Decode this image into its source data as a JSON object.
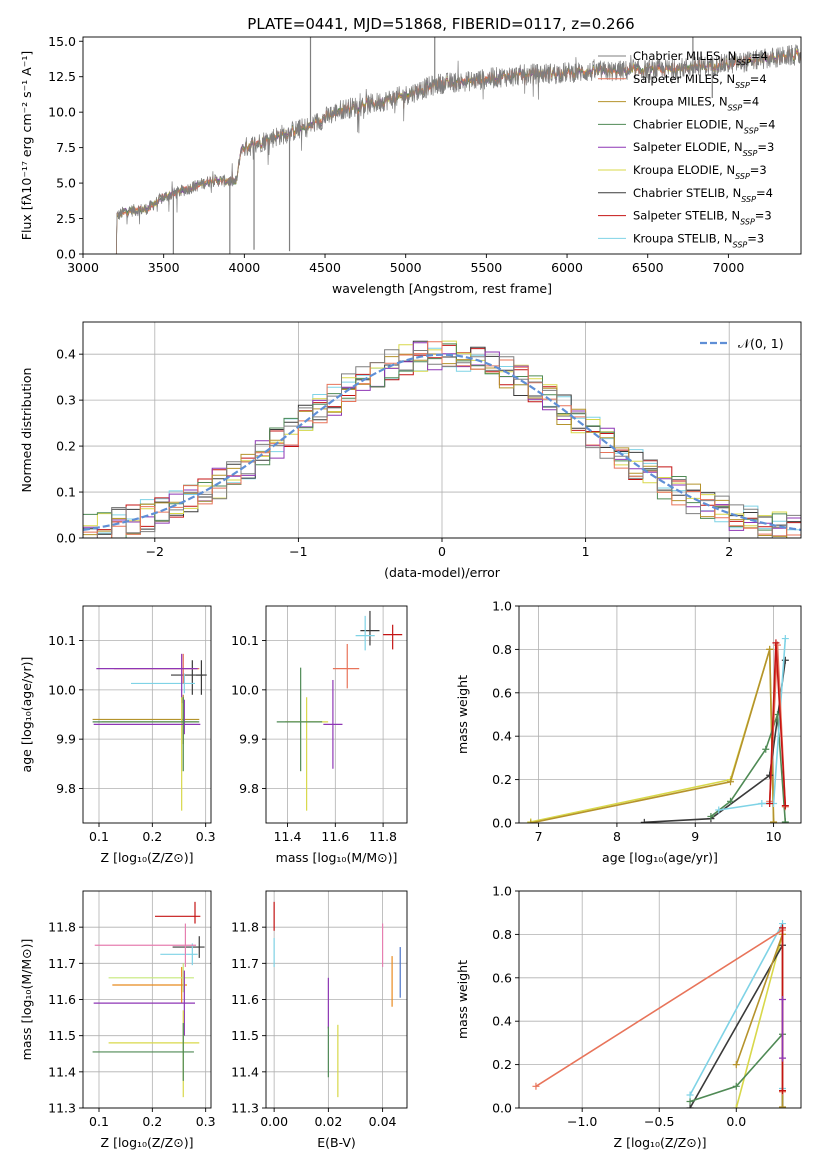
{
  "figure_title": "PLATE=0441, MJD=51868, FIBERID=0117, z=0.266",
  "palette": [
    "#7f7f7f",
    "#e8745a",
    "#b5932c",
    "#4f8a55",
    "#8e36b5",
    "#d8d84a",
    "#3a3a3a",
    "#c41414",
    "#7fd3e6"
  ],
  "extra_colors": {
    "pink": "#e67fb0",
    "orange": "#e88a1d",
    "green_light": "#c5e87a",
    "gauss": "#5f8fd6",
    "blue": "#4a72c8"
  },
  "chart_data": [
    {
      "type": "line",
      "title": "PLATE=0441, MJD=51868, FIBERID=0117, z=0.266",
      "xlabel": "wavelength [Angstrom, rest frame]",
      "ylabel": "Flux [fλ10⁻¹⁷ erg cm⁻² s⁻¹ A⁻¹]",
      "xlim": [
        3000,
        7450
      ],
      "ylim": [
        0,
        15.3
      ],
      "xticks": [
        3000,
        3500,
        4000,
        4500,
        5000,
        5500,
        6000,
        6500,
        7000
      ],
      "yticks": [
        0,
        2.5,
        5,
        7.5,
        10,
        12.5,
        15
      ],
      "ytick_labels": [
        "0.0",
        "2.5",
        "5.0",
        "7.5",
        "10.0",
        "12.5",
        "15.0"
      ],
      "grid": false,
      "legend_position": "upper right",
      "series_names": [
        "Chabrier MILES, N_SSP=4",
        "Salpeter MILES, N_SSP=4",
        "Kroupa MILES, N_SSP=4",
        "Chabrier ELODIE, N_SSP=4",
        "Salpeter ELODIE, N_SSP=3",
        "Kroupa ELODIE, N_SSP=3",
        "Chabrier STELIB, N_SSP=4",
        "Salpeter STELIB, N_SSP=3",
        "Kroupa STELIB, N_SSP=3"
      ],
      "spectrum_start": 3200,
      "continuum_anchors": [
        [
          3200,
          2.6
        ],
        [
          3260,
          3.0
        ],
        [
          3400,
          3.2
        ],
        [
          3500,
          4.0
        ],
        [
          3650,
          4.6
        ],
        [
          3800,
          5.2
        ],
        [
          3950,
          5.1
        ],
        [
          3980,
          7.4
        ],
        [
          4200,
          8.3
        ],
        [
          4400,
          9.0
        ],
        [
          4600,
          10.2
        ],
        [
          4800,
          10.6
        ],
        [
          5000,
          11.2
        ],
        [
          5200,
          12.0
        ],
        [
          5400,
          12.2
        ],
        [
          5600,
          12.5
        ],
        [
          5800,
          12.7
        ],
        [
          6000,
          12.8
        ],
        [
          6300,
          12.9
        ],
        [
          6600,
          13.0
        ],
        [
          7000,
          13.4
        ],
        [
          7400,
          14.0
        ]
      ]
    },
    {
      "type": "area",
      "xlabel": "(data-model)/error",
      "ylabel": "Normed distribution",
      "xlim": [
        -2.5,
        2.5
      ],
      "ylim": [
        0,
        0.47
      ],
      "xticks": [
        -2,
        -1,
        0,
        1,
        2
      ],
      "xtick_labels": [
        "−2",
        "−1",
        "0",
        "1",
        "2"
      ],
      "yticks": [
        0,
        0.1,
        0.2,
        0.3,
        0.4
      ],
      "ytick_labels": [
        "0.0",
        "0.1",
        "0.2",
        "0.3",
        "0.4"
      ],
      "grid": true,
      "legend_position": "upper right",
      "legend_label": "𝒩(0, 1)",
      "bin_width": 0.1,
      "gaussian": {
        "mean": 0,
        "sigma": 1
      }
    },
    {
      "type": "scatter",
      "xlabel": "Z [log₁₀(Z/Z⊙)]",
      "ylabel": "age  [log₁₀(age/yr)]",
      "xlim": [
        0.07,
        0.31
      ],
      "ylim": [
        9.73,
        10.17
      ],
      "xticks": [
        0.1,
        0.2,
        0.3
      ],
      "xtick_labels": [
        "0.1",
        "0.2",
        "0.3"
      ],
      "yticks": [
        9.8,
        9.9,
        10.0,
        10.1
      ],
      "ytick_labels": [
        "9.8",
        "9.9",
        "10.0",
        "10.1"
      ],
      "grid": true,
      "points": [
        {
          "c": 6,
          "x": 0.275,
          "y": 10.03,
          "xerr": [
            0.04,
            0.02
          ],
          "yerr": [
            0.04,
            0.03
          ]
        },
        {
          "c": 8,
          "x": 0.26,
          "y": 10.013,
          "xerr": [
            0.1,
            0.02
          ],
          "yerr": [
            0.02,
            0.02
          ]
        },
        {
          "c": 6,
          "x": 0.292,
          "y": 10.03,
          "xerr": [
            0.01,
            0.01
          ],
          "yerr": [
            0.04,
            0.03
          ]
        },
        {
          "c": 1,
          "x": 0.258,
          "y": 10.043,
          "xerr": [
            0.13,
            0.03
          ],
          "yerr": [
            0.03,
            0.03
          ]
        },
        {
          "c": 4,
          "x": 0.255,
          "y": 10.043,
          "xerr": [
            0.16,
            0.03
          ],
          "yerr": [
            0.07,
            0.03
          ]
        },
        {
          "c": 2,
          "x": 0.258,
          "y": 9.94,
          "xerr": [
            0.17,
            0.03
          ],
          "yerr": [
            0.05,
            0.05
          ]
        },
        {
          "c": 5,
          "x": 0.255,
          "y": 9.935,
          "xerr": [
            0.15,
            0.03
          ],
          "yerr": [
            0.18,
            0.05
          ]
        },
        {
          "c": 4,
          "x": 0.26,
          "y": 9.93,
          "xerr": [
            0.17,
            0.03
          ],
          "yerr": [
            0.02,
            0.05
          ]
        },
        {
          "c": 3,
          "x": 0.258,
          "y": 9.935,
          "xerr": [
            0.17,
            0.03
          ],
          "yerr": [
            0.1,
            0.05
          ]
        }
      ]
    },
    {
      "type": "scatter",
      "xlabel": "mass [log₁₀(M/M⊙)]",
      "ylabel": "",
      "xlim": [
        11.31,
        11.9
      ],
      "ylim": [
        9.73,
        10.17
      ],
      "xticks": [
        11.4,
        11.6,
        11.8
      ],
      "xtick_labels": [
        "11.4",
        "11.6",
        "11.8"
      ],
      "yticks": [
        9.8,
        9.9,
        10.0,
        10.1
      ],
      "ytick_labels": [
        "9.8",
        "9.9",
        "10.0",
        "10.1"
      ],
      "grid": true,
      "points": [
        {
          "c": 7,
          "x": 11.84,
          "y": 10.112,
          "xerr": [
            0.04,
            0.04
          ],
          "yerr": [
            0.03,
            0.02
          ]
        },
        {
          "c": 6,
          "x": 11.745,
          "y": 10.12,
          "xerr": [
            0.04,
            0.04
          ],
          "yerr": [
            0.03,
            0.04
          ]
        },
        {
          "c": 8,
          "x": 11.725,
          "y": 10.11,
          "xerr": [
            0.04,
            0.04
          ],
          "yerr": [
            0.03,
            0.04
          ]
        },
        {
          "c": 1,
          "x": 11.65,
          "y": 10.043,
          "xerr": [
            0.06,
            0.05
          ],
          "yerr": [
            0.04,
            0.05
          ]
        },
        {
          "c": 4,
          "x": 11.59,
          "y": 9.93,
          "xerr": [
            0.04,
            0.04
          ],
          "yerr": [
            0.09,
            0.09
          ]
        },
        {
          "c": 5,
          "x": 11.48,
          "y": 9.935,
          "xerr": [
            0.09,
            0.09
          ],
          "yerr": [
            0.18,
            0.05
          ]
        },
        {
          "c": 3,
          "x": 11.455,
          "y": 9.935,
          "xerr": [
            0.1,
            0.09
          ],
          "yerr": [
            0.1,
            0.11
          ]
        }
      ]
    },
    {
      "type": "line",
      "xlabel": "age  [log₁₀(age/yr)]",
      "ylabel": "mass weight",
      "xlim": [
        6.75,
        10.35
      ],
      "ylim": [
        0,
        1.0
      ],
      "xticks": [
        7,
        8,
        9,
        10
      ],
      "xtick_labels": [
        "7",
        "8",
        "9",
        "10"
      ],
      "yticks": [
        0,
        0.2,
        0.4,
        0.6,
        0.8,
        1.0
      ],
      "ytick_labels": [
        "0.0",
        "0.2",
        "0.4",
        "0.6",
        "0.8",
        "1.0"
      ],
      "grid": true,
      "series": [
        {
          "c": 5,
          "x": [
            6.9,
            9.45,
            9.95,
            10.0
          ],
          "y": [
            0.005,
            0.2,
            0.8,
            0.003
          ]
        },
        {
          "c": 2,
          "x": [
            6.9,
            9.45,
            9.95,
            10.0
          ],
          "y": [
            0.0,
            0.19,
            0.8,
            0.005
          ]
        },
        {
          "c": 6,
          "x": [
            8.35,
            9.2,
            9.95,
            10.15
          ],
          "y": [
            0.003,
            0.02,
            0.22,
            0.75
          ]
        },
        {
          "c": 3,
          "x": [
            9.2,
            9.45,
            9.9,
            10.05,
            10.15
          ],
          "y": [
            0.03,
            0.1,
            0.34,
            0.5,
            0.005
          ]
        },
        {
          "c": 8,
          "x": [
            9.3,
            9.85,
            10.0,
            10.15
          ],
          "y": [
            0.06,
            0.09,
            0.09,
            0.85
          ]
        },
        {
          "c": 1,
          "x": [
            9.95,
            10.05,
            10.15
          ],
          "y": [
            0.1,
            0.82,
            0.075
          ]
        },
        {
          "c": 7,
          "x": [
            9.95,
            10.03,
            10.15
          ],
          "y": [
            0.09,
            0.83,
            0.08
          ]
        }
      ]
    },
    {
      "type": "scatter",
      "xlabel": "Z [log₁₀(Z/Z⊙)]",
      "ylabel": "mass [log₁₀(M/M⊙)]",
      "xlim": [
        0.07,
        0.31
      ],
      "ylim": [
        11.3,
        11.9
      ],
      "xticks": [
        0.1,
        0.2,
        0.3
      ],
      "xtick_labels": [
        "0.1",
        "0.2",
        "0.3"
      ],
      "yticks": [
        11.3,
        11.4,
        11.5,
        11.6,
        11.7,
        11.8
      ],
      "ytick_labels": [
        "11.3",
        "11.4",
        "11.5",
        "11.6",
        "11.7",
        "11.8"
      ],
      "grid": true,
      "points": [
        {
          "c": 7,
          "x": 0.28,
          "y": 11.83,
          "xerr": [
            0.075,
            0.01
          ],
          "yerr": [
            0.02,
            0.04
          ]
        },
        {
          "c": 6,
          "x": 0.288,
          "y": 11.745,
          "xerr": [
            0.05,
            0.01
          ],
          "yerr": [
            0.03,
            0.03
          ]
        },
        {
          "c": 8,
          "x": 0.275,
          "y": 11.725,
          "xerr": [
            0.06,
            0.01
          ],
          "yerr": [
            0.03,
            0.03
          ]
        },
        {
          "c": 9,
          "x": 0.262,
          "y": 11.75,
          "xerr": [
            0.17,
            0.02
          ],
          "yerr": [
            0.06,
            0.06
          ]
        },
        {
          "c": 10,
          "x": 0.255,
          "y": 11.64,
          "xerr": [
            0.13,
            0.01
          ],
          "yerr": [
            0.05,
            0.05
          ]
        },
        {
          "c": 11,
          "x": 0.258,
          "y": 11.66,
          "xerr": [
            0.14,
            0.02
          ],
          "yerr": [
            0.04,
            0.04
          ]
        },
        {
          "c": 4,
          "x": 0.26,
          "y": 11.59,
          "xerr": [
            0.17,
            0.02
          ],
          "yerr": [
            0.09,
            0.09
          ]
        },
        {
          "c": 5,
          "x": 0.258,
          "y": 11.48,
          "xerr": [
            0.14,
            0.03
          ],
          "yerr": [
            0.15,
            0.09
          ]
        },
        {
          "c": 3,
          "x": 0.258,
          "y": 11.455,
          "xerr": [
            0.17,
            0.02
          ],
          "yerr": [
            0.08,
            0.08
          ]
        }
      ]
    },
    {
      "type": "scatter",
      "xlabel": "E(B-V)",
      "ylabel": "",
      "xlim": [
        -0.003,
        0.049
      ],
      "ylim": [
        11.3,
        11.9
      ],
      "xticks": [
        0.0,
        0.02,
        0.04
      ],
      "xtick_labels": [
        "0.00",
        "0.02",
        "0.04"
      ],
      "yticks": [
        11.3,
        11.4,
        11.5,
        11.6,
        11.7,
        11.8
      ],
      "ytick_labels": [
        "11.3",
        "11.4",
        "11.5",
        "11.6",
        "11.7",
        "11.8"
      ],
      "grid": true,
      "points": [
        {
          "c": 7,
          "x": 0.0,
          "y": 11.83,
          "xerr": [
            0,
            0
          ],
          "yerr": [
            0.04,
            0.04
          ]
        },
        {
          "c": 8,
          "x": 0.0,
          "y": 11.73,
          "xerr": [
            0,
            0
          ],
          "yerr": [
            0.04,
            0.04
          ]
        },
        {
          "c": 4,
          "x": 0.02,
          "y": 11.59,
          "xerr": [
            0,
            0
          ],
          "yerr": [
            0.07,
            0.07
          ]
        },
        {
          "c": 3,
          "x": 0.02,
          "y": 11.455,
          "xerr": [
            0,
            0
          ],
          "yerr": [
            0.07,
            0.07
          ]
        },
        {
          "c": 5,
          "x": 0.0235,
          "y": 11.43,
          "xerr": [
            0,
            0
          ],
          "yerr": [
            0.1,
            0.1
          ]
        },
        {
          "c": 9,
          "x": 0.04,
          "y": 11.75,
          "xerr": [
            0,
            0
          ],
          "yerr": [
            0.06,
            0.06
          ]
        },
        {
          "c": 10,
          "x": 0.0435,
          "y": 11.65,
          "xerr": [
            0,
            0
          ],
          "yerr": [
            0.07,
            0.07
          ]
        },
        {
          "c": 12,
          "x": 0.0465,
          "y": 11.675,
          "xerr": [
            0,
            0
          ],
          "yerr": [
            0.07,
            0.07
          ]
        }
      ]
    },
    {
      "type": "line",
      "xlabel": "Z [log₁₀(Z/Z⊙)]",
      "ylabel": "mass weight",
      "xlim": [
        -1.41,
        0.42
      ],
      "ylim": [
        0,
        1.0
      ],
      "xticks": [
        -1.0,
        -0.5,
        0.0
      ],
      "xtick_labels": [
        "−1.0",
        "−0.5",
        "0.0"
      ],
      "yticks": [
        0,
        0.2,
        0.4,
        0.6,
        0.8,
        1.0
      ],
      "ytick_labels": [
        "0.0",
        "0.2",
        "0.4",
        "0.6",
        "0.8",
        "1.0"
      ],
      "grid": true,
      "series": [
        {
          "c": 5,
          "x": [
            0.0,
            0.3
          ],
          "y": [
            0.0,
            0.8
          ]
        },
        {
          "c": 6,
          "x": [
            -0.3,
            0.3,
            0.3
          ],
          "y": [
            0.0,
            0.75,
            0.003
          ]
        },
        {
          "c": 3,
          "x": [
            -0.3,
            0.0,
            0.3,
            0.3
          ],
          "y": [
            0.03,
            0.1,
            0.34,
            0.0
          ]
        },
        {
          "c": 8,
          "x": [
            -0.3,
            0.3,
            0.3
          ],
          "y": [
            0.06,
            0.85,
            0.09
          ]
        },
        {
          "c": 2,
          "x": [
            0.0,
            0.3,
            0.3
          ],
          "y": [
            0.2,
            0.8,
            0.005
          ]
        },
        {
          "c": 1,
          "x": [
            -1.3,
            0.3,
            0.3
          ],
          "y": [
            0.1,
            0.82,
            0.075
          ]
        },
        {
          "c": 7,
          "x": [
            0.3,
            0.3
          ],
          "y": [
            0.83,
            0.08
          ]
        },
        {
          "c": 4,
          "x": [
            0.3,
            0.3
          ],
          "y": [
            0.5,
            0.23
          ]
        }
      ]
    }
  ]
}
